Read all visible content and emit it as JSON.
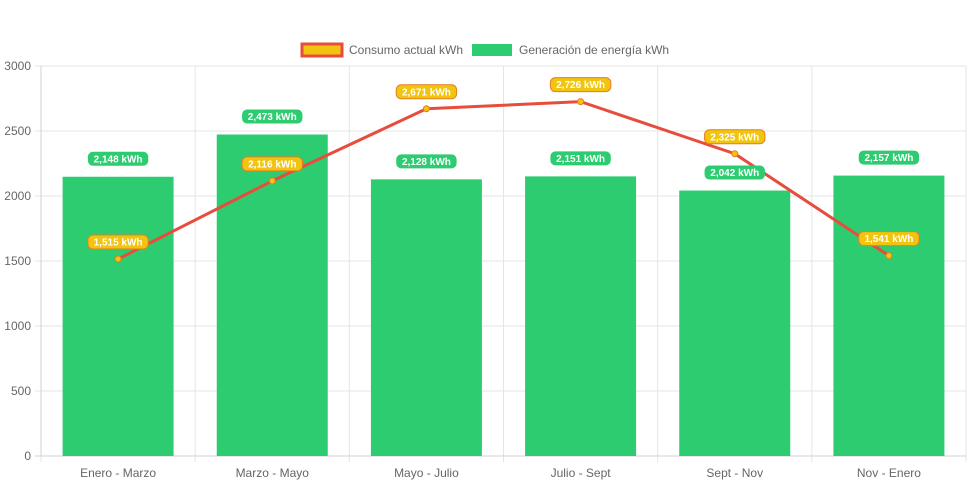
{
  "chart_data": {
    "type": "bar",
    "categories": [
      "Enero - Marzo",
      "Marzo - Mayo",
      "Mayo - Julio",
      "Julio - Sept",
      "Sept - Nov",
      "Nov - Enero"
    ],
    "series": [
      {
        "name": "Consumo actual kWh",
        "type": "line",
        "values": [
          1515,
          2116,
          2671,
          2726,
          2325,
          1541
        ],
        "labels": [
          "1,515 kWh",
          "2,116 kWh",
          "2,671 kWh",
          "2,726 kWh",
          "2,325 kWh",
          "1,541 kWh"
        ],
        "color": "#e74c3c",
        "point_color": "#f1c40f"
      },
      {
        "name": "Generación de energía kWh",
        "type": "bar",
        "values": [
          2148,
          2473,
          2128,
          2151,
          2042,
          2157
        ],
        "labels": [
          "2,148 kWh",
          "2,473 kWh",
          "2,128 kWh",
          "2,151 kWh",
          "2,042 kWh",
          "2,157 kWh"
        ],
        "color": "#2ecc71"
      }
    ],
    "y_ticks": [
      "0",
      "500",
      "1000",
      "1500",
      "2000",
      "2500",
      "3000"
    ],
    "ylim": [
      0,
      3000
    ],
    "grid": true,
    "legend": "top-center",
    "title": "",
    "xlabel": "",
    "ylabel": ""
  }
}
